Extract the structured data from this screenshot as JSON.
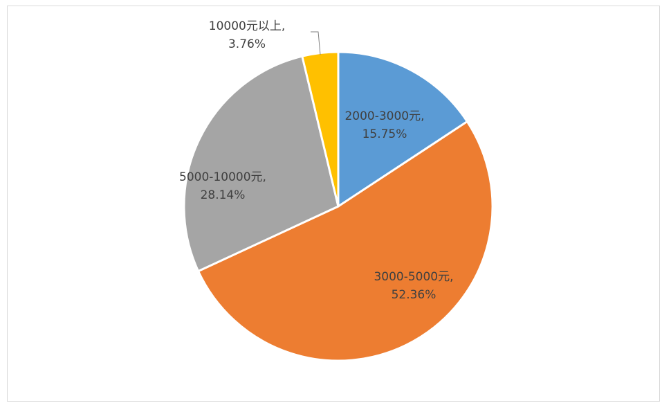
{
  "chart_data": {
    "type": "pie",
    "start_angle_deg": 0,
    "direction": "clockwise",
    "slices": [
      {
        "name": "2000-3000元",
        "value": 15.75,
        "label": "2000-3000元,",
        "pct_label": "15.75%",
        "color": "#5b9bd5"
      },
      {
        "name": "3000-5000元",
        "value": 52.36,
        "label": "3000-5000元,",
        "pct_label": "52.36%",
        "color": "#ed7d31"
      },
      {
        "name": "5000-10000元",
        "value": 28.14,
        "label": "5000-10000元,",
        "pct_label": "28.14%",
        "color": "#a5a5a5"
      },
      {
        "name": "10000元以上",
        "value": 3.76,
        "label": "10000元以上,",
        "pct_label": "3.76%",
        "color": "#ffc000"
      }
    ],
    "legend": "none"
  }
}
